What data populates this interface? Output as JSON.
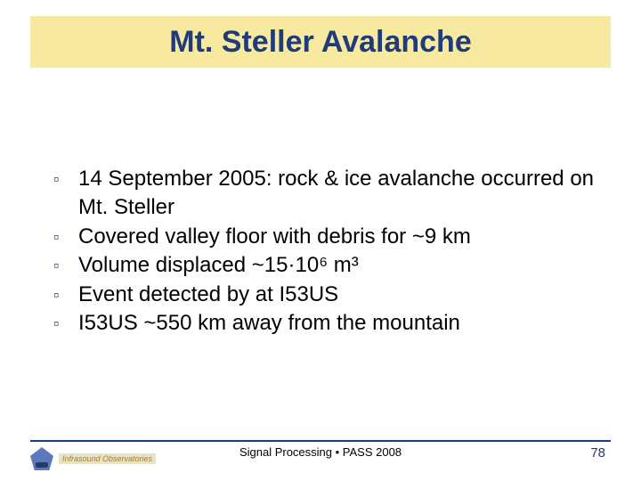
{
  "title": "Mt. Steller Avalanche",
  "bullets": [
    "14 September 2005: rock & ice avalanche occurred on Mt. Steller",
    "Covered valley floor with debris for ~9 km",
    "Volume displaced ~15·10⁶ m³",
    "Event detected by at I53US",
    "I53US ~550 km away from the mountain"
  ],
  "footer": {
    "text": "Signal Processing • PASS 2008",
    "page": "78",
    "logo_text": "Infrasound Observatories"
  },
  "colors": {
    "title_bar_bg": "#f8e9a1",
    "title_text": "#1f3b7a",
    "bullet_mark": "#1f3b7a",
    "body_text": "#000000",
    "footer_line": "#1f3b7a",
    "page_num": "#1f3b7a",
    "logo_pentagon": "#5b79bc"
  },
  "typography": {
    "title_fontsize": 34,
    "title_weight": "bold",
    "bullet_fontsize": 24,
    "footer_fontsize": 13,
    "pagenum_fontsize": 15
  }
}
